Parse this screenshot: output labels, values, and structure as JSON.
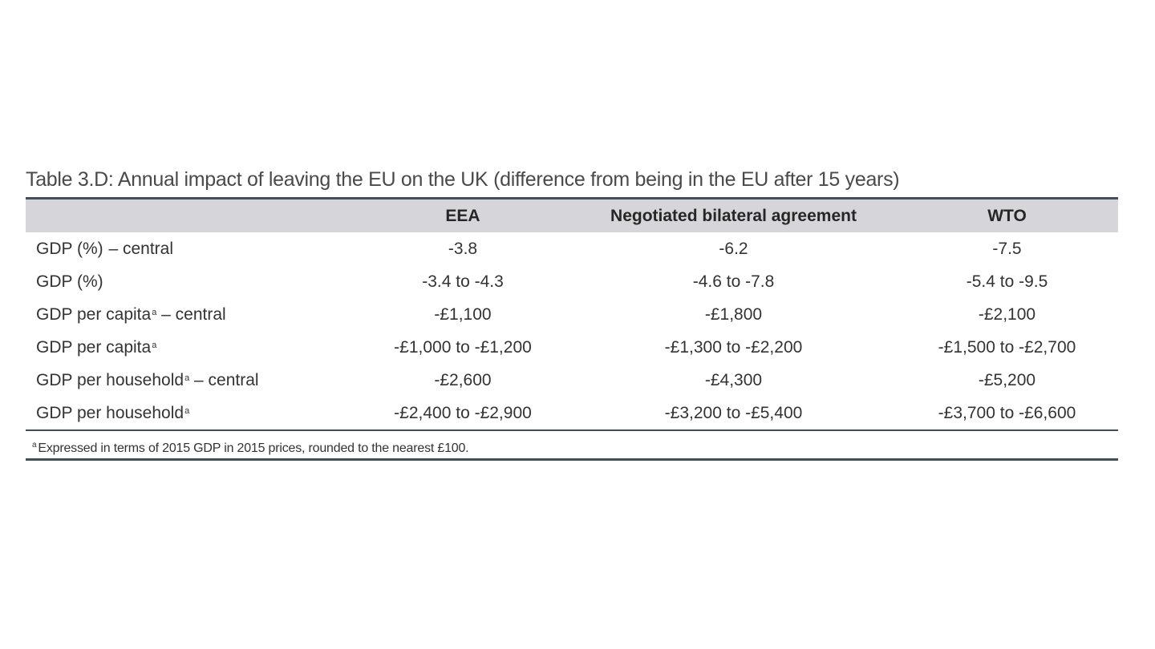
{
  "table": {
    "title": "Table 3.D: Annual impact of leaving the EU on the UK (difference from being in the EU after 15 years)",
    "headers": [
      "",
      "EEA",
      "Negotiated bilateral agreement",
      "WTO"
    ],
    "footnote_marker": "a",
    "rows": [
      {
        "label": "GDP (%)",
        "suffix": " – central",
        "marker": "",
        "values": [
          "-3.8",
          "-6.2",
          "-7.5"
        ]
      },
      {
        "label": "GDP (%)",
        "suffix": "",
        "marker": "",
        "values": [
          "-3.4 to -4.3",
          "-4.6 to -7.8",
          "-5.4 to -9.5"
        ]
      },
      {
        "label": "GDP per capita",
        "suffix": " – central",
        "marker": "a",
        "values": [
          "-£1,100",
          "-£1,800",
          "-£2,100"
        ]
      },
      {
        "label": "GDP per capita",
        "suffix": "",
        "marker": "a",
        "values": [
          "-£1,000 to -£1,200",
          "-£1,300 to -£2,200",
          "-£1,500 to -£2,700"
        ]
      },
      {
        "label": "GDP per household",
        "suffix": " – central",
        "marker": "a",
        "values": [
          "-£2,600",
          "-£4,300",
          "-£5,200"
        ]
      },
      {
        "label": "GDP per household",
        "suffix": "",
        "marker": "a",
        "values": [
          "-£2,400 to -£2,900",
          "-£3,200 to -£5,400",
          "-£3,700 to -£6,600"
        ]
      }
    ],
    "footnote": "Expressed in terms of 2015 GDP in 2015 prices, rounded to the nearest £100."
  },
  "colors": {
    "header_bg": "#d5d5da",
    "rule": "#3f4f5c",
    "text": "#333333"
  }
}
